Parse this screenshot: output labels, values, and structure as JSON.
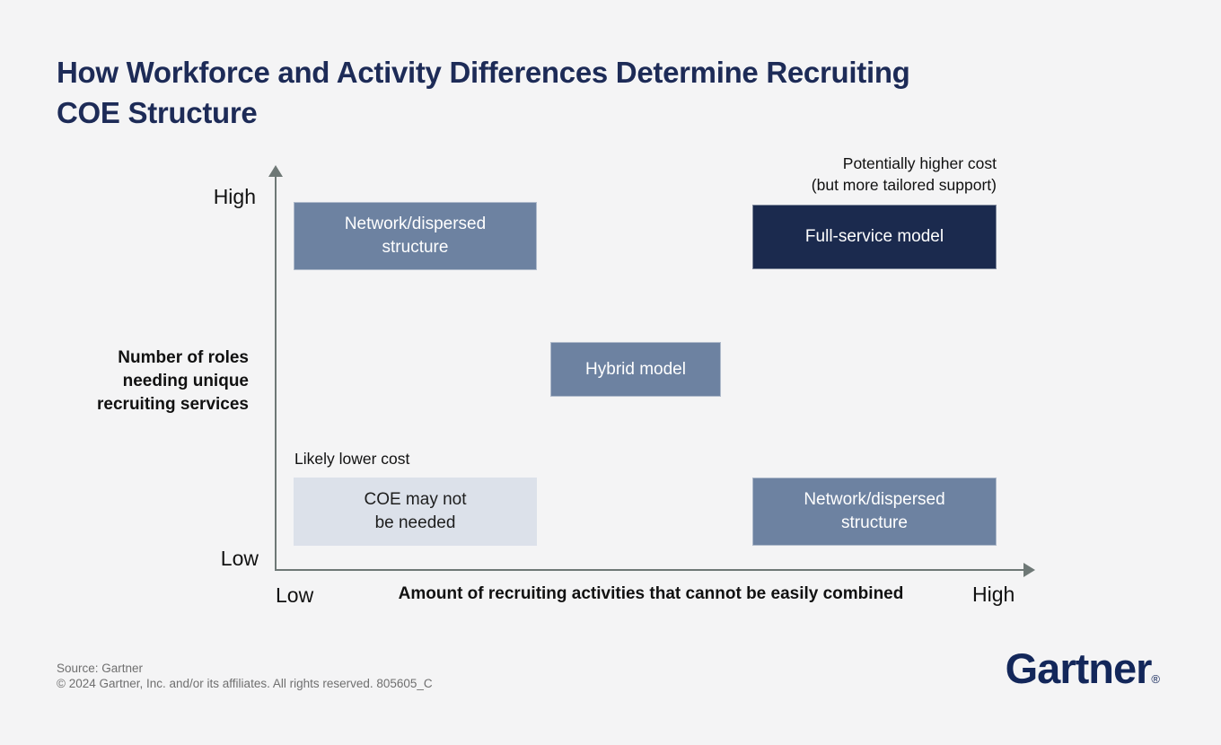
{
  "title": {
    "line1": "How Workforce and Activity Differences Determine Recruiting",
    "line2": "COE Structure"
  },
  "colors": {
    "background": "#f4f4f5",
    "title_navy": "#1d2b57",
    "box_slate": "#6d82a1",
    "box_navy": "#1b2a4e",
    "box_light": "#dce1ea",
    "box_light_text": "#1e1e1e",
    "axis_gray": "#6e7876",
    "annotation_text": "#111111",
    "footer_gray": "#6f6f6f",
    "logo_navy": "#13275a"
  },
  "y_axis": {
    "high_label": "High",
    "low_label": "Low",
    "title_lines": [
      "Number of roles",
      "needing unique",
      "recruiting services"
    ]
  },
  "x_axis": {
    "low_label": "Low",
    "high_label": "High",
    "title": "Amount of recruiting activities that cannot be easily combined"
  },
  "annotations": {
    "higher_cost_line1": "Potentially higher cost",
    "higher_cost_line2": "(but more tailored support)",
    "lower_cost": "Likely lower cost"
  },
  "boxes": [
    {
      "name": "network-dispersed-top-left",
      "variant": "slate",
      "position": "top-left",
      "lines": [
        "Network/dispersed",
        "structure"
      ]
    },
    {
      "name": "full-service-model",
      "variant": "navy",
      "position": "top-right",
      "lines": [
        "Full-service model"
      ]
    },
    {
      "name": "hybrid-model",
      "variant": "slate",
      "position": "center",
      "lines": [
        "Hybrid model"
      ]
    },
    {
      "name": "coe-may-not-be-needed",
      "variant": "light",
      "position": "bottom-left",
      "lines": [
        "COE may not",
        "be needed"
      ]
    },
    {
      "name": "network-dispersed-bottom-right",
      "variant": "slate",
      "position": "bottom-right",
      "lines": [
        "Network/dispersed",
        "structure"
      ]
    }
  ],
  "footer": {
    "source": "Source: Gartner",
    "copyright": "© 2024 Gartner, Inc. and/or its affiliates. All rights reserved. 805605_C",
    "logo_text": "Gartner",
    "logo_mark": "®"
  }
}
